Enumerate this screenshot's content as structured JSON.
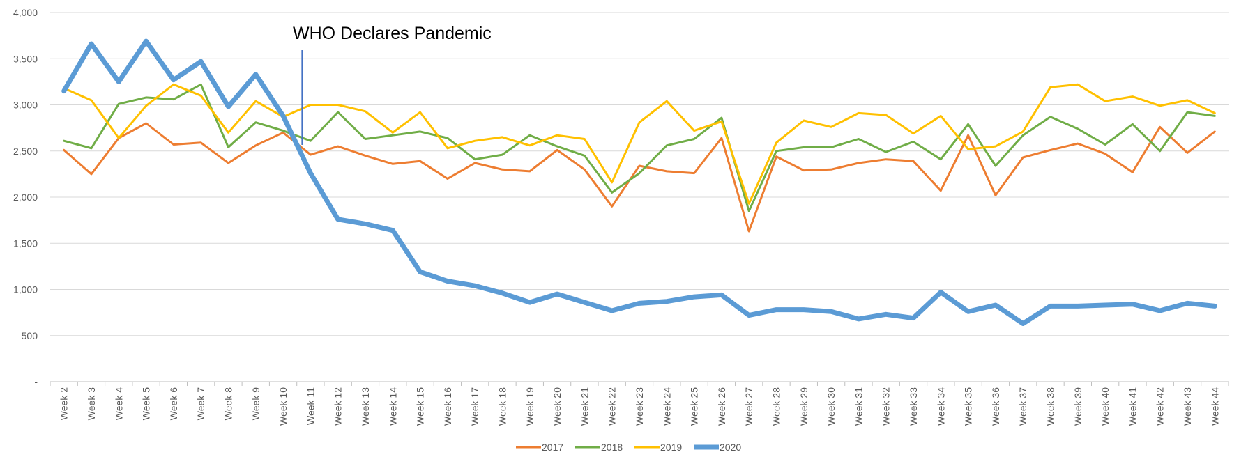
{
  "chart_data": {
    "type": "line",
    "title": "",
    "xlabel": "",
    "ylabel": "",
    "ylim": [
      0,
      4000
    ],
    "y_ticks": [
      0,
      500,
      1000,
      1500,
      2000,
      2500,
      3000,
      3500,
      4000
    ],
    "y_tick_labels": [
      "-",
      "500",
      "1,000",
      "1,500",
      "2,000",
      "2,500",
      "3,000",
      "3,500",
      "4,000"
    ],
    "grid": "horizontal",
    "legend_position": "bottom",
    "categories": [
      "Week 2",
      "Week 3",
      "Week 4",
      "Week 5",
      "Week 6",
      "Week 7",
      "Week 8",
      "Week 9",
      "Week 10",
      "Week 11",
      "Week 12",
      "Week 13",
      "Week 14",
      "Week 15",
      "Week 16",
      "Week 17",
      "Week 18",
      "Week 19",
      "Week 20",
      "Week 21",
      "Week 22",
      "Week 23",
      "Week 24",
      "Week 25",
      "Week 26",
      "Week 27",
      "Week 28",
      "Week 29",
      "Week 30",
      "Week 31",
      "Week 32",
      "Week 33",
      "Week 34",
      "Week 35",
      "Week 36",
      "Week 37",
      "Week 38",
      "Week 39",
      "Week 40",
      "Week 41",
      "Week 42",
      "Week 43",
      "Week 44"
    ],
    "series": [
      {
        "name": "2017",
        "color": "#ed7d31",
        "width": 3,
        "values": [
          2510,
          2250,
          2640,
          2800,
          2570,
          2590,
          2370,
          2560,
          2700,
          2460,
          2550,
          2450,
          2360,
          2390,
          2200,
          2370,
          2300,
          2280,
          2510,
          2300,
          1900,
          2340,
          2280,
          2260,
          2640,
          1630,
          2440,
          2290,
          2300,
          2370,
          2410,
          2390,
          2070,
          2670,
          2020,
          2430,
          2510,
          2580,
          2470,
          2270,
          2760,
          2480,
          2710
        ]
      },
      {
        "name": "2018",
        "color": "#70ad47",
        "width": 3,
        "values": [
          2610,
          2530,
          3010,
          3080,
          3060,
          3220,
          2540,
          2810,
          2720,
          2610,
          2920,
          2630,
          2670,
          2710,
          2640,
          2410,
          2460,
          2670,
          2550,
          2450,
          2050,
          2260,
          2560,
          2630,
          2860,
          1850,
          2500,
          2540,
          2540,
          2630,
          2490,
          2600,
          2410,
          2790,
          2340,
          2670,
          2870,
          2740,
          2570,
          2790,
          2500,
          2920,
          2880
        ]
      },
      {
        "name": "2019",
        "color": "#ffc000",
        "width": 3,
        "values": [
          3180,
          3050,
          2640,
          2990,
          3220,
          3100,
          2700,
          3040,
          2870,
          3000,
          3000,
          2930,
          2700,
          2920,
          2530,
          2610,
          2650,
          2560,
          2670,
          2630,
          2160,
          2810,
          3040,
          2720,
          2820,
          1930,
          2590,
          2830,
          2760,
          2910,
          2890,
          2690,
          2880,
          2520,
          2550,
          2710,
          3190,
          3220,
          3040,
          3090,
          2990,
          3050,
          2910
        ]
      },
      {
        "name": "2020",
        "color": "#5b9bd5",
        "width": 7,
        "values": [
          3150,
          3660,
          3250,
          3690,
          3270,
          3470,
          2980,
          3330,
          2880,
          2260,
          1760,
          1710,
          1640,
          1190,
          1090,
          1040,
          960,
          860,
          950,
          860,
          770,
          850,
          870,
          920,
          940,
          720,
          780,
          780,
          760,
          680,
          730,
          690,
          970,
          760,
          830,
          630,
          820,
          820,
          830,
          840,
          770,
          850,
          820
        ]
      }
    ],
    "annotations": [
      {
        "text": "WHO Declares Pandemic",
        "x_category": "Week 11",
        "color": "#4472c4"
      }
    ]
  }
}
